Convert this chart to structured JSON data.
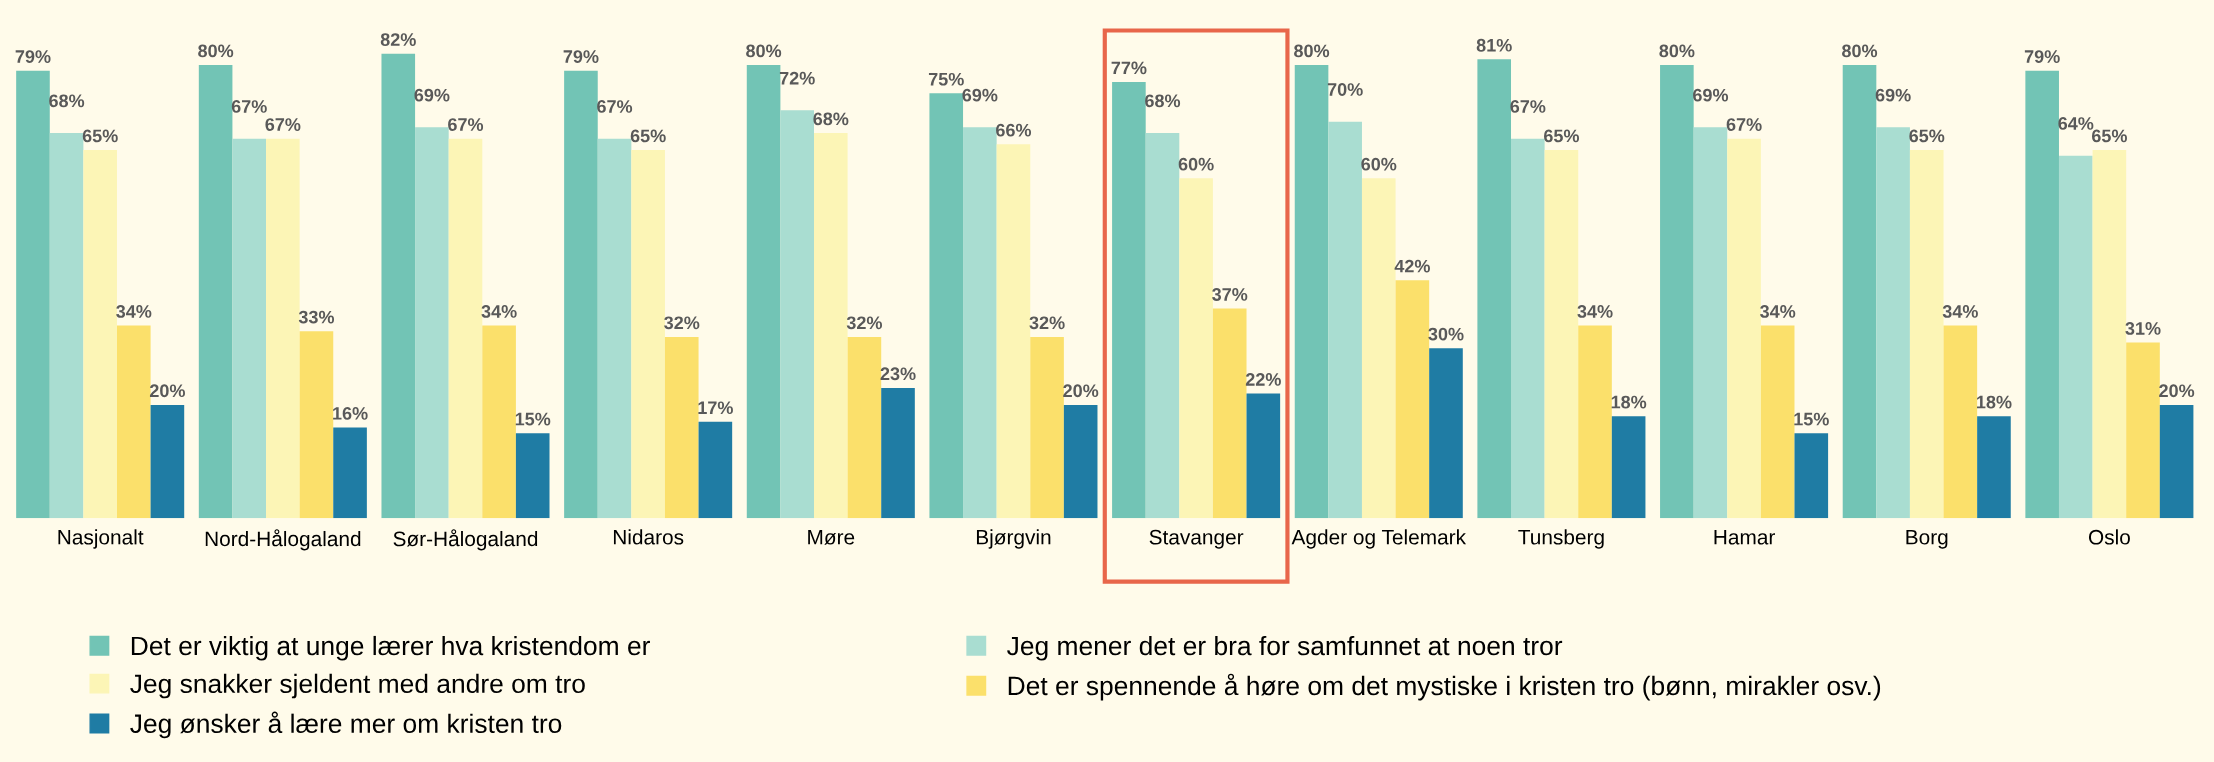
{
  "chart_data": {
    "type": "bar",
    "categories": [
      "Nasjonalt",
      "Nord-Hålogaland",
      "Sør-Hålogaland",
      "Nidaros",
      "Møre",
      "Bjørgvin",
      "Stavanger",
      "Agder og Telemark",
      "Tunsberg",
      "Hamar",
      "Borg",
      "Oslo"
    ],
    "series": [
      {
        "name": "Det er viktig at unge lærer hva kristendom er",
        "color": "#72c4b5",
        "values": [
          79,
          80,
          82,
          79,
          80,
          75,
          77,
          80,
          81,
          80,
          80,
          79
        ],
        "value_labels": [
          "79%",
          "80%",
          "82%",
          "79%",
          "80%",
          "75%",
          "77%",
          "80%",
          "81%",
          "80%",
          "80%",
          "79%"
        ]
      },
      {
        "name": "Jeg mener det er bra for samfunnet at noen tror",
        "color": "#a9ddd1",
        "values": [
          68,
          67,
          69,
          67,
          72,
          69,
          68,
          70,
          67,
          69,
          69,
          64
        ],
        "value_labels": [
          "68%",
          "67%",
          "69%",
          "67%",
          "72%",
          "69%",
          "68%",
          "70%",
          "67%",
          "69%",
          "69%",
          "64%"
        ]
      },
      {
        "name": "Jeg snakker sjeldent med andre om tro",
        "color": "#fcf5b6",
        "values": [
          65,
          67,
          67,
          65,
          68,
          66,
          60,
          60,
          65,
          67,
          65,
          65
        ],
        "value_labels": [
          "65%",
          "67%",
          "67%",
          "65%",
          "68%",
          "66%",
          "60%",
          "60%",
          "65%",
          "67%",
          "65%",
          "65%"
        ]
      },
      {
        "name": "Det er spennende å høre om det mystiske i kristen tro (bønn, mirakler osv.)",
        "color": "#fbe06b",
        "values": [
          34,
          33,
          34,
          32,
          32,
          32,
          37,
          42,
          34,
          34,
          34,
          31
        ],
        "value_labels": [
          "34%",
          "33%",
          "34%",
          "32%",
          "32%",
          "32%",
          "37%",
          "42%",
          "34%",
          "34%",
          "34%",
          "31%"
        ]
      },
      {
        "name": "Jeg ønsker å lære mer om kristen tro",
        "color": "#1f7ca4",
        "values": [
          20,
          16,
          15,
          17,
          23,
          20,
          22,
          30,
          18,
          15,
          18,
          20
        ],
        "value_labels": [
          "20%",
          "16%",
          "15%",
          "17%",
          "23%",
          "20%",
          "22%",
          "30%",
          "18%",
          "15%",
          "18%",
          "20%"
        ]
      }
    ],
    "legend": "bottom",
    "grid": false
  }
}
